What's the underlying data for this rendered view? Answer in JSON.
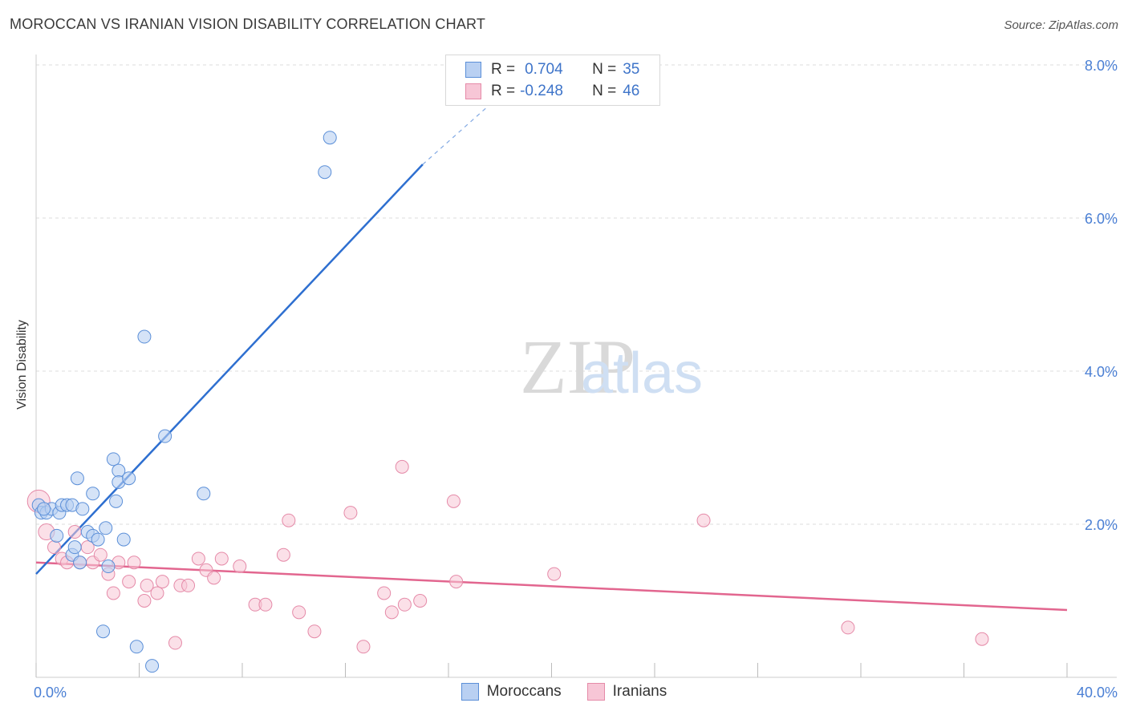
{
  "header": {
    "title": "MOROCCAN VS IRANIAN VISION DISABILITY CORRELATION CHART",
    "source": "Source: ZipAtlas.com"
  },
  "watermark": {
    "zip": "ZIP",
    "atlas": "atlas"
  },
  "legend": {
    "moroccans": {
      "r_label": "R =",
      "r_value": "0.704",
      "n_label": "N =",
      "n_value": "35"
    },
    "iranians": {
      "r_label": "R =",
      "r_value": "-0.248",
      "n_label": "N =",
      "n_value": "46"
    }
  },
  "bottom_legend": {
    "moroccans": "Moroccans",
    "iranians": "Iranians"
  },
  "colors": {
    "moroccan_fill": "#b9d0f2",
    "moroccan_stroke": "#5b8fd8",
    "moroccan_line": "#2e6fd0",
    "iranian_fill": "#f7c6d6",
    "iranian_stroke": "#e58aa8",
    "iranian_line": "#e2668f",
    "tick": "#4a7fd4",
    "grid": "#dddddd"
  },
  "chart_data": {
    "type": "scatter",
    "title": "MOROCCAN VS IRANIAN VISION DISABILITY CORRELATION CHART",
    "xlabel": "",
    "ylabel": "Vision Disability",
    "xlim": [
      0,
      40
    ],
    "ylim": [
      0,
      8.2
    ],
    "x_tick_labels": [
      "0.0%",
      "40.0%"
    ],
    "y_ticks": [
      2,
      4,
      6,
      8
    ],
    "y_tick_labels": [
      "2.0%",
      "4.0%",
      "6.0%",
      "8.0%"
    ],
    "legend_position": "top-center",
    "series": [
      {
        "name": "Moroccans",
        "r": 0.704,
        "n": 35,
        "points": [
          [
            0.1,
            2.25
          ],
          [
            0.2,
            2.15
          ],
          [
            0.4,
            2.15
          ],
          [
            0.6,
            2.2
          ],
          [
            0.8,
            1.85
          ],
          [
            0.9,
            2.15
          ],
          [
            1.0,
            2.25
          ],
          [
            1.2,
            2.25
          ],
          [
            1.4,
            2.25
          ],
          [
            1.4,
            1.6
          ],
          [
            1.5,
            1.7
          ],
          [
            1.6,
            2.6
          ],
          [
            1.7,
            1.5
          ],
          [
            1.8,
            2.2
          ],
          [
            2.0,
            1.9
          ],
          [
            2.2,
            1.85
          ],
          [
            2.2,
            2.4
          ],
          [
            2.4,
            1.8
          ],
          [
            2.6,
            0.6
          ],
          [
            2.7,
            1.95
          ],
          [
            2.8,
            1.45
          ],
          [
            3.0,
            2.85
          ],
          [
            3.1,
            2.3
          ],
          [
            3.2,
            2.7
          ],
          [
            3.2,
            2.55
          ],
          [
            3.4,
            1.8
          ],
          [
            3.6,
            2.6
          ],
          [
            3.9,
            0.4
          ],
          [
            4.2,
            4.45
          ],
          [
            4.5,
            0.15
          ],
          [
            5.0,
            3.15
          ],
          [
            6.5,
            2.4
          ],
          [
            11.2,
            6.6
          ],
          [
            11.4,
            7.05
          ],
          [
            0.3,
            2.2
          ]
        ],
        "trend_start": [
          0,
          1.35
        ],
        "trend_end_solid": [
          15.0,
          6.7
        ],
        "trend_end_dashed": [
          17.5,
          7.45
        ]
      },
      {
        "name": "Iranians",
        "r": -0.248,
        "n": 46,
        "points": [
          [
            0.1,
            2.3
          ],
          [
            0.4,
            1.9
          ],
          [
            0.7,
            1.7
          ],
          [
            1.0,
            1.55
          ],
          [
            1.2,
            1.5
          ],
          [
            1.5,
            1.9
          ],
          [
            1.7,
            1.5
          ],
          [
            2.0,
            1.7
          ],
          [
            2.2,
            1.5
          ],
          [
            2.5,
            1.6
          ],
          [
            2.8,
            1.35
          ],
          [
            3.0,
            1.1
          ],
          [
            3.2,
            1.5
          ],
          [
            3.6,
            1.25
          ],
          [
            3.8,
            1.5
          ],
          [
            4.2,
            1.0
          ],
          [
            4.3,
            1.2
          ],
          [
            4.7,
            1.1
          ],
          [
            4.9,
            1.25
          ],
          [
            5.4,
            0.45
          ],
          [
            5.6,
            1.2
          ],
          [
            5.9,
            1.2
          ],
          [
            6.3,
            1.55
          ],
          [
            6.6,
            1.4
          ],
          [
            6.9,
            1.3
          ],
          [
            7.2,
            1.55
          ],
          [
            7.9,
            1.45
          ],
          [
            8.5,
            0.95
          ],
          [
            8.9,
            0.95
          ],
          [
            9.6,
            1.6
          ],
          [
            9.8,
            2.05
          ],
          [
            10.2,
            0.85
          ],
          [
            10.8,
            0.6
          ],
          [
            12.2,
            2.15
          ],
          [
            12.7,
            0.4
          ],
          [
            13.5,
            1.1
          ],
          [
            13.8,
            0.85
          ],
          [
            14.3,
            0.95
          ],
          [
            14.2,
            2.75
          ],
          [
            14.9,
            1.0
          ],
          [
            16.2,
            2.3
          ],
          [
            16.3,
            1.25
          ],
          [
            20.1,
            1.35
          ],
          [
            25.9,
            2.05
          ],
          [
            31.5,
            0.65
          ],
          [
            36.7,
            0.5
          ]
        ],
        "trend_start": [
          0,
          1.5
        ],
        "trend_end": [
          40,
          0.88
        ]
      }
    ]
  }
}
